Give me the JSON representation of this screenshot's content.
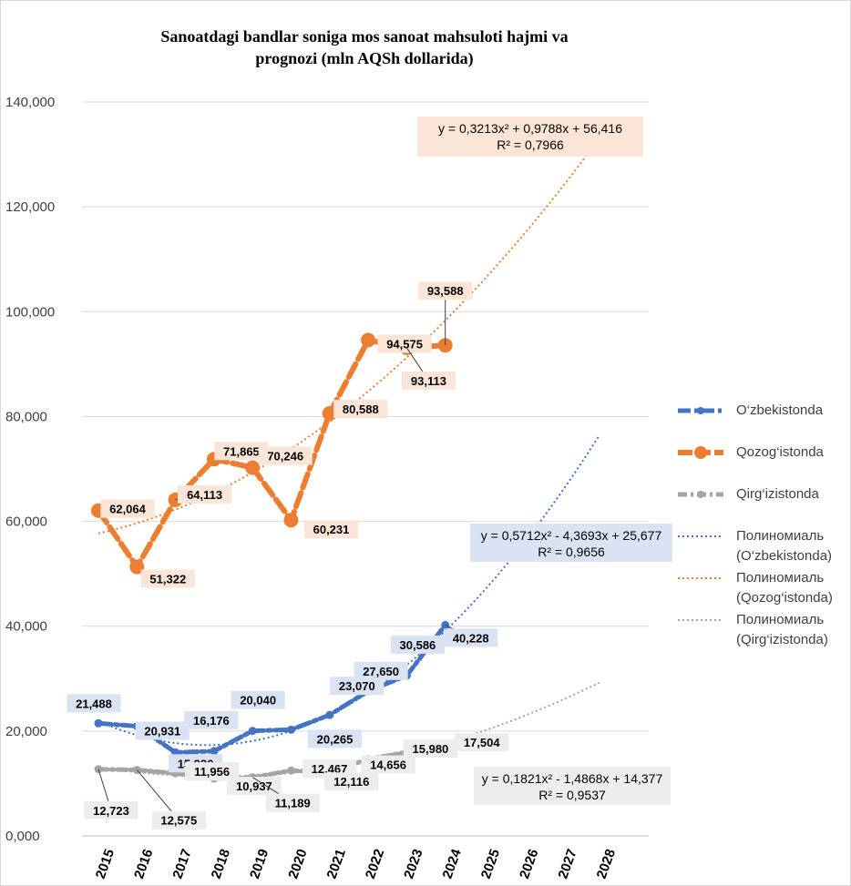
{
  "chart_data": {
    "type": "line",
    "title": "Sanoatdagi bandlar soniga mos sanoat mahsuloti hajmi va prognozi (mln AQSh dollarida)",
    "title_line1": "Sanoatdagi bandlar soniga mos sanoat mahsuloti hajmi va",
    "title_line2": "prognozi (mln AQSh dollarida)",
    "xlabel": "",
    "ylabel": "",
    "ylim": [
      0,
      140
    ],
    "y_ticks": [
      "0,000",
      "20,000",
      "40,000",
      "60,000",
      "80,000",
      "100,000",
      "120,000",
      "140,000"
    ],
    "x_ticks": [
      "2015",
      "2016",
      "2017",
      "2018",
      "2019",
      "2020",
      "2021",
      "2022",
      "2023",
      "2024",
      "2025",
      "2026",
      "2027",
      "2028"
    ],
    "grid": true,
    "legend_position": "right",
    "series": [
      {
        "name": "O‘zbekistonda",
        "color": "#4472C4",
        "x": [
          "2015",
          "2016",
          "2017",
          "2018",
          "2019",
          "2020",
          "2021",
          "2022",
          "2023",
          "2024"
        ],
        "values": [
          21.488,
          20.931,
          15.93,
          16.176,
          20.04,
          20.265,
          23.07,
          27.65,
          30.586,
          40.228
        ],
        "labels": [
          "21,488",
          "20,931",
          "15,930",
          "16,176",
          "20,040",
          "20,265",
          "23,070",
          "27,650",
          "30,586",
          "40,228"
        ]
      },
      {
        "name": "Qozog‘istonda",
        "color": "#ED7D31",
        "x": [
          "2015",
          "2016",
          "2017",
          "2018",
          "2019",
          "2020",
          "2021",
          "2022",
          "2023",
          "2024"
        ],
        "values": [
          62.064,
          51.322,
          64.113,
          71.865,
          70.246,
          60.231,
          80.588,
          94.575,
          93.113,
          93.588
        ],
        "labels": [
          "62,064",
          "51,322",
          "64,113",
          "71,865",
          "70,246",
          "60,231",
          "80,588",
          "94,575",
          "93,113",
          "93,588"
        ]
      },
      {
        "name": "Qirg‘izistonda",
        "color": "#A5A5A5",
        "x": [
          "2015",
          "2016",
          "2017",
          "2018",
          "2019",
          "2020",
          "2021",
          "2022",
          "2023",
          "2024"
        ],
        "values": [
          12.723,
          12.575,
          11.956,
          10.937,
          11.189,
          12.467,
          12.116,
          14.656,
          15.98,
          17.504
        ],
        "labels": [
          "12,723",
          "12,575",
          "11,956",
          "10,937",
          "11,189",
          "12,467",
          "12,116",
          "14,656",
          "15,980",
          "17,504"
        ]
      }
    ],
    "trendlines": [
      {
        "name": "Полиномиаль (O‘zbekistonda)",
        "name_line1": "Полиномиаль",
        "name_line2": "(O‘zbekistonda)",
        "color": "#4472C4",
        "coefficients": [
          0.5712,
          -4.3693,
          25.677
        ],
        "equation": "y = 0,5712x² - 4,3693x + 25,677",
        "r2": "R² = 0,9656"
      },
      {
        "name": "Полиномиаль (Qozog‘istonda)",
        "name_line1": "Полиномиаль",
        "name_line2": "(Qozog‘istonda)",
        "color": "#ED7D31",
        "coefficients": [
          0.3213,
          0.9788,
          56.416
        ],
        "equation": "y = 0,3213x² + 0,9788x + 56,416",
        "r2": "R² = 0,7966"
      },
      {
        "name": "Полиномиаль (Qirg‘izistonda)",
        "name_line1": "Полиномиаль",
        "name_line2": "(Qirg‘izistonda)",
        "color": "#A5A5A5",
        "coefficients": [
          0.1821,
          -1.4868,
          14.377
        ],
        "equation": "y = 0,1821x² - 1,4868x + 14,377",
        "r2": "R² = 0,9537"
      }
    ]
  }
}
